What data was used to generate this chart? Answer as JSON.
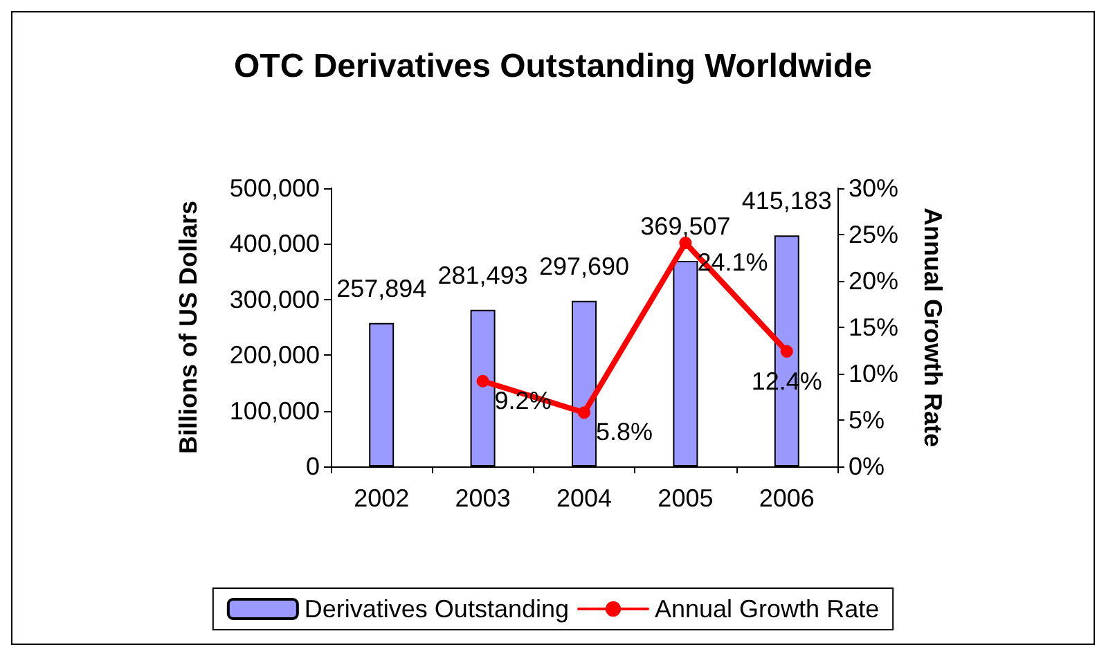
{
  "chart_data": {
    "type": "bar",
    "title": "OTC Derivatives Outstanding Worldwide",
    "ylabel": "Billions of US Dollars",
    "y2label": "Annual Growth Rate",
    "categories": [
      "2002",
      "2003",
      "2004",
      "2005",
      "2006"
    ],
    "series": [
      {
        "name": "Derivatives Outstanding",
        "color": "#9999ff",
        "values": [
          257894,
          281493,
          297690,
          369507,
          415183
        ],
        "value_labels": [
          "257,894",
          "281,493",
          "297,690",
          "369,507",
          "415,183"
        ]
      },
      {
        "name": "Annual Growth Rate",
        "type": "line",
        "axis": "y2",
        "color": "#ff0000",
        "marker": "circle",
        "values": [
          null,
          9.2,
          5.8,
          24.1,
          12.4
        ],
        "value_labels": [
          null,
          "9.2%",
          "5.8%",
          "24.1%",
          "12.4%"
        ]
      }
    ],
    "ylim": [
      0,
      500000
    ],
    "yticks": [
      {
        "value": 0,
        "label": "0"
      },
      {
        "value": 100000,
        "label": "100,000"
      },
      {
        "value": 200000,
        "label": "200,000"
      },
      {
        "value": 300000,
        "label": "300,000"
      },
      {
        "value": 400000,
        "label": "400,000"
      },
      {
        "value": 500000,
        "label": "500,000"
      }
    ],
    "y2lim": [
      0,
      30
    ],
    "y2ticks": [
      {
        "value": 0,
        "label": "0%"
      },
      {
        "value": 5,
        "label": "5%"
      },
      {
        "value": 10,
        "label": "10%"
      },
      {
        "value": 15,
        "label": "15%"
      },
      {
        "value": 20,
        "label": "20%"
      },
      {
        "value": 25,
        "label": "25%"
      },
      {
        "value": 30,
        "label": "30%"
      }
    ],
    "grid": false,
    "legend": "bottom"
  }
}
